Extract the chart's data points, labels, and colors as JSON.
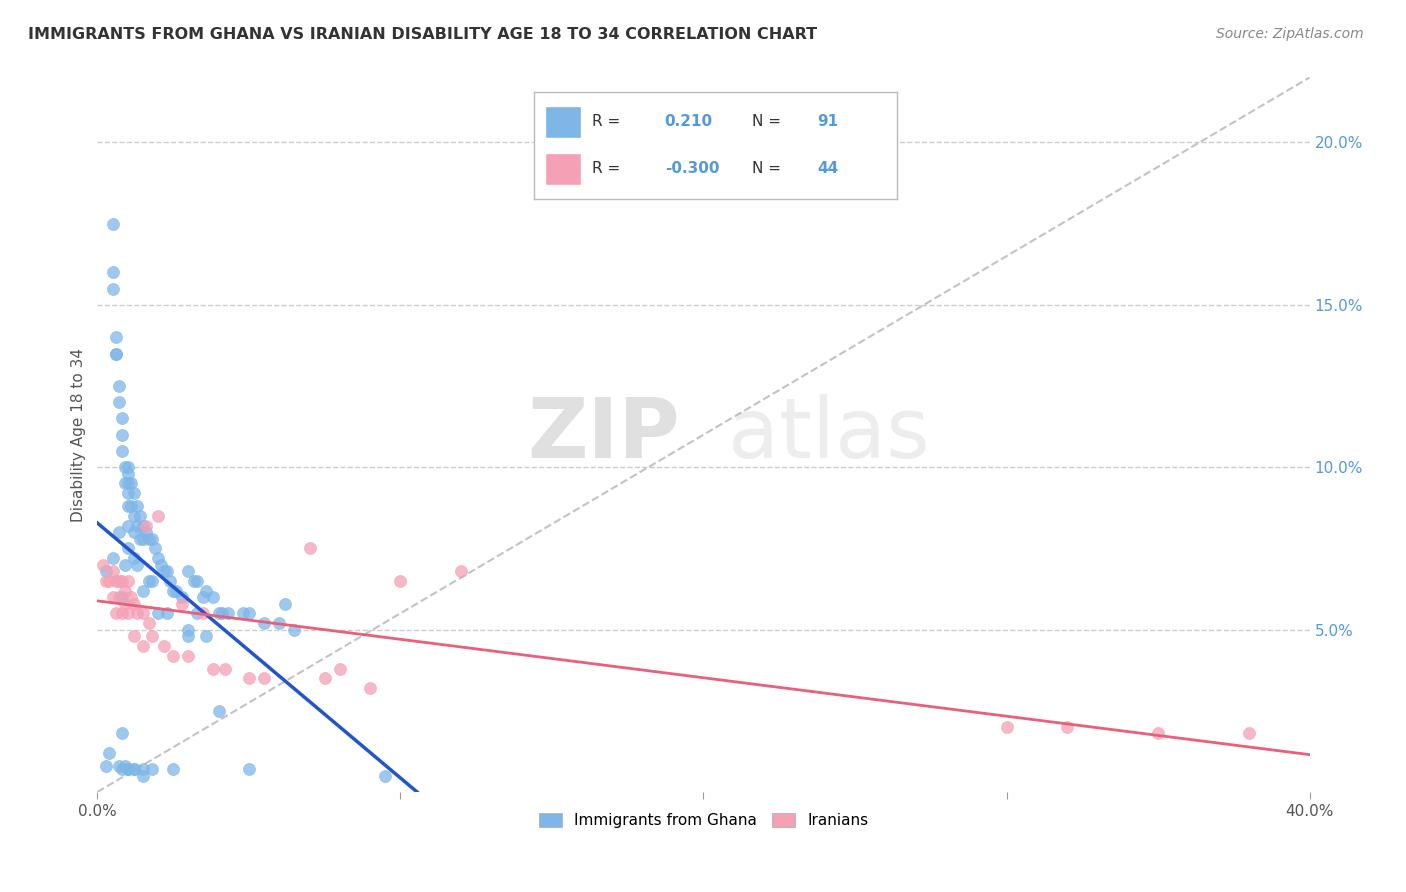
{
  "title": "IMMIGRANTS FROM GHANA VS IRANIAN DISABILITY AGE 18 TO 34 CORRELATION CHART",
  "source": "Source: ZipAtlas.com",
  "ylabel": "Disability Age 18 to 34",
  "xlim": [
    0.0,
    0.4
  ],
  "ylim": [
    0.0,
    0.22
  ],
  "y_ticks_right": [
    0.05,
    0.1,
    0.15,
    0.2
  ],
  "y_tick_labels_right": [
    "5.0%",
    "10.0%",
    "15.0%",
    "20.0%"
  ],
  "ghana_R": 0.21,
  "ghana_N": 91,
  "iran_R": -0.3,
  "iran_N": 44,
  "ghana_color": "#7EB6E8",
  "iran_color": "#F4A0B5",
  "ghana_line_color": "#2255CC",
  "iran_line_color": "#E8607A",
  "diagonal_color": "#AAAAAA",
  "watermark_zip": "ZIP",
  "watermark_atlas": "atlas",
  "ghana_x": [
    0.003,
    0.005,
    0.005,
    0.005,
    0.006,
    0.006,
    0.007,
    0.007,
    0.007,
    0.008,
    0.008,
    0.008,
    0.008,
    0.009,
    0.009,
    0.009,
    0.01,
    0.01,
    0.01,
    0.01,
    0.01,
    0.01,
    0.01,
    0.011,
    0.011,
    0.012,
    0.012,
    0.012,
    0.012,
    0.013,
    0.013,
    0.013,
    0.014,
    0.014,
    0.015,
    0.015,
    0.015,
    0.016,
    0.017,
    0.017,
    0.018,
    0.018,
    0.019,
    0.02,
    0.02,
    0.021,
    0.022,
    0.023,
    0.023,
    0.024,
    0.025,
    0.026,
    0.028,
    0.03,
    0.03,
    0.032,
    0.033,
    0.033,
    0.035,
    0.036,
    0.036,
    0.038,
    0.04,
    0.041,
    0.043,
    0.048,
    0.05,
    0.055,
    0.06,
    0.062,
    0.065,
    0.003,
    0.004,
    0.005,
    0.006,
    0.007,
    0.008,
    0.009,
    0.01,
    0.012,
    0.015,
    0.018,
    0.025,
    0.03,
    0.04,
    0.05,
    0.008,
    0.01,
    0.012,
    0.015,
    0.095
  ],
  "ghana_y": [
    0.068,
    0.175,
    0.16,
    0.072,
    0.14,
    0.135,
    0.125,
    0.12,
    0.08,
    0.115,
    0.11,
    0.105,
    0.06,
    0.1,
    0.095,
    0.07,
    0.1,
    0.098,
    0.095,
    0.092,
    0.088,
    0.082,
    0.075,
    0.095,
    0.088,
    0.092,
    0.085,
    0.08,
    0.072,
    0.088,
    0.082,
    0.07,
    0.085,
    0.078,
    0.082,
    0.078,
    0.062,
    0.08,
    0.078,
    0.065,
    0.078,
    0.065,
    0.075,
    0.072,
    0.055,
    0.07,
    0.068,
    0.068,
    0.055,
    0.065,
    0.062,
    0.062,
    0.06,
    0.068,
    0.05,
    0.065,
    0.065,
    0.055,
    0.06,
    0.062,
    0.048,
    0.06,
    0.055,
    0.055,
    0.055,
    0.055,
    0.055,
    0.052,
    0.052,
    0.058,
    0.05,
    0.008,
    0.012,
    0.155,
    0.135,
    0.008,
    0.007,
    0.008,
    0.007,
    0.007,
    0.007,
    0.007,
    0.007,
    0.048,
    0.025,
    0.007,
    0.018,
    0.007,
    0.007,
    0.005,
    0.005
  ],
  "iran_x": [
    0.002,
    0.003,
    0.004,
    0.005,
    0.005,
    0.006,
    0.006,
    0.007,
    0.007,
    0.008,
    0.008,
    0.009,
    0.009,
    0.01,
    0.01,
    0.011,
    0.012,
    0.012,
    0.013,
    0.015,
    0.015,
    0.016,
    0.017,
    0.018,
    0.02,
    0.022,
    0.025,
    0.028,
    0.03,
    0.035,
    0.038,
    0.042,
    0.05,
    0.055,
    0.07,
    0.075,
    0.08,
    0.09,
    0.1,
    0.12,
    0.3,
    0.32,
    0.35,
    0.38
  ],
  "iran_y": [
    0.07,
    0.065,
    0.065,
    0.068,
    0.06,
    0.065,
    0.055,
    0.065,
    0.06,
    0.065,
    0.055,
    0.062,
    0.058,
    0.065,
    0.055,
    0.06,
    0.058,
    0.048,
    0.055,
    0.055,
    0.045,
    0.082,
    0.052,
    0.048,
    0.085,
    0.045,
    0.042,
    0.058,
    0.042,
    0.055,
    0.038,
    0.038,
    0.035,
    0.035,
    0.075,
    0.035,
    0.038,
    0.032,
    0.065,
    0.068,
    0.02,
    0.02,
    0.018,
    0.018
  ]
}
